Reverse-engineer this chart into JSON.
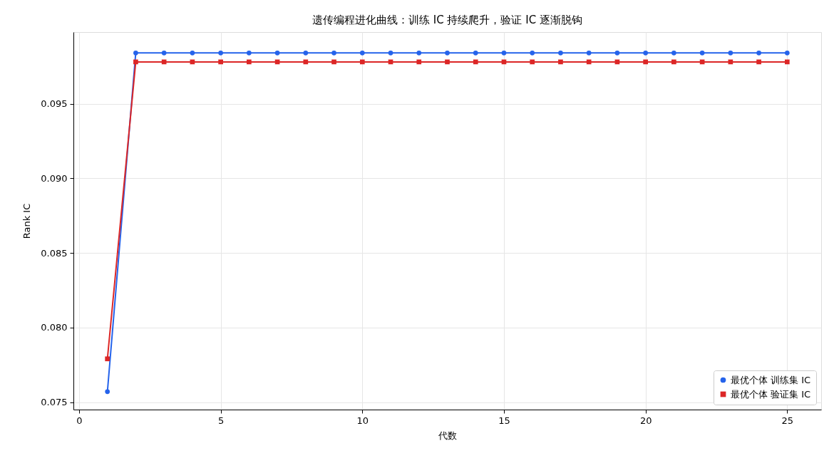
{
  "chart_data": {
    "type": "line",
    "title": "遗传编程进化曲线：训练 IC 持续爬升，验证 IC 逐渐脱钩",
    "xlabel": "代数",
    "ylabel": "Rank IC",
    "x": [
      1,
      2,
      3,
      4,
      5,
      6,
      7,
      8,
      9,
      10,
      11,
      12,
      13,
      14,
      15,
      16,
      17,
      18,
      19,
      20,
      21,
      22,
      23,
      24,
      25
    ],
    "series": [
      {
        "name": "最优个体 训练集 IC",
        "color": "#2563eb",
        "marker": "circle",
        "values": [
          0.0757,
          0.0984,
          0.0984,
          0.0984,
          0.0984,
          0.0984,
          0.0984,
          0.0984,
          0.0984,
          0.0984,
          0.0984,
          0.0984,
          0.0984,
          0.0984,
          0.0984,
          0.0984,
          0.0984,
          0.0984,
          0.0984,
          0.0984,
          0.0984,
          0.0984,
          0.0984,
          0.0984,
          0.0984
        ]
      },
      {
        "name": "最优个体 验证集 IC",
        "color": "#dc2626",
        "marker": "square",
        "values": [
          0.0779,
          0.0978,
          0.0978,
          0.0978,
          0.0978,
          0.0978,
          0.0978,
          0.0978,
          0.0978,
          0.0978,
          0.0978,
          0.0978,
          0.0978,
          0.0978,
          0.0978,
          0.0978,
          0.0978,
          0.0978,
          0.0978,
          0.0978,
          0.0978,
          0.0978,
          0.0978,
          0.0978,
          0.0978
        ]
      }
    ],
    "xlim": [
      -0.2,
      26.2
    ],
    "xticks": [
      0,
      5,
      10,
      15,
      20,
      25
    ],
    "ylim": [
      0.0745,
      0.0998
    ],
    "yticks": [
      {
        "value": 0.075,
        "label": "0.075"
      },
      {
        "value": 0.08,
        "label": "0.080"
      },
      {
        "value": 0.085,
        "label": "0.085"
      },
      {
        "value": 0.09,
        "label": "0.090"
      },
      {
        "value": 0.095,
        "label": "0.095"
      }
    ],
    "grid": true,
    "legend": "bottom right",
    "line_style": "solid"
  }
}
